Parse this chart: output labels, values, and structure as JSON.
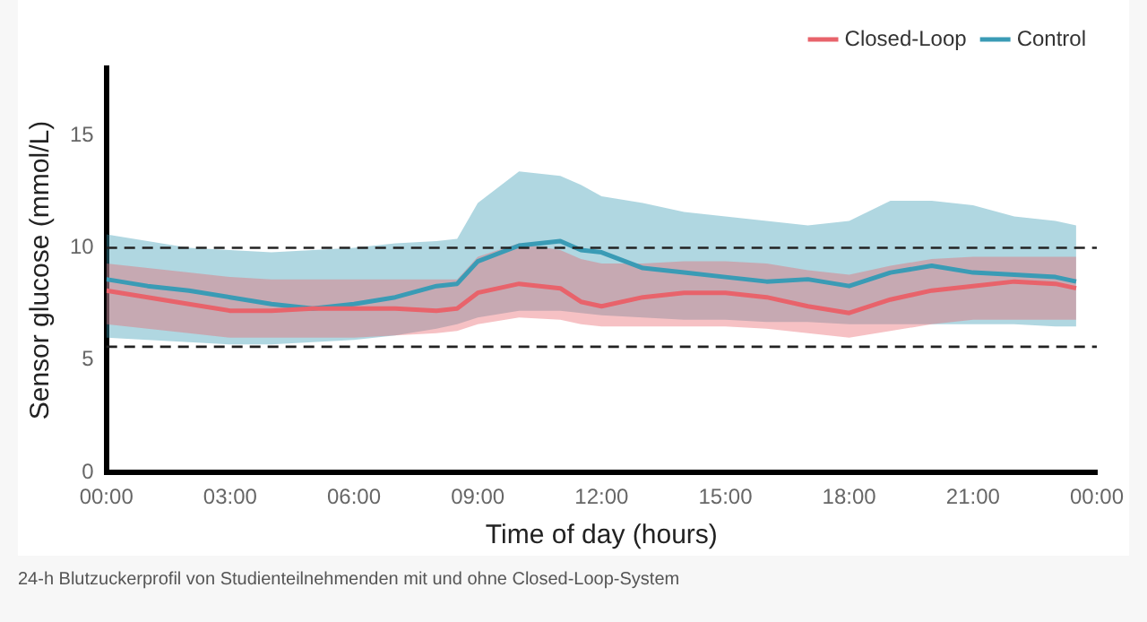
{
  "chart_data": {
    "type": "line",
    "xlabel": "Time of day (hours)",
    "ylabel": "Sensor glucose (mmol/L)",
    "x": [
      0,
      1,
      2,
      3,
      4,
      5,
      6,
      7,
      8,
      8.5,
      9,
      10,
      11,
      11.5,
      12,
      13,
      14,
      15,
      16,
      17,
      18,
      19,
      20,
      21,
      22,
      23,
      23.5
    ],
    "xlim": [
      0,
      24
    ],
    "xticks": [
      {
        "value": 0,
        "label": "00:00"
      },
      {
        "value": 3,
        "label": "03:00"
      },
      {
        "value": 6,
        "label": "06:00"
      },
      {
        "value": 9,
        "label": "09:00"
      },
      {
        "value": 12,
        "label": "12:00"
      },
      {
        "value": 15,
        "label": "15:00"
      },
      {
        "value": 18,
        "label": "18:00"
      },
      {
        "value": 21,
        "label": "21:00"
      },
      {
        "value": 24,
        "label": "00:00"
      }
    ],
    "ylim": [
      0,
      18
    ],
    "yticks": [
      0,
      5,
      10,
      15
    ],
    "grid": false,
    "legend": "top right",
    "series": [
      {
        "name": "Closed-Loop",
        "color": "#e8636b",
        "values": [
          8.1,
          7.8,
          7.5,
          7.2,
          7.2,
          7.3,
          7.3,
          7.3,
          7.2,
          7.3,
          8.0,
          8.4,
          8.2,
          7.6,
          7.4,
          7.8,
          8.0,
          8.0,
          7.8,
          7.4,
          7.1,
          7.7,
          8.1,
          8.3,
          8.5,
          8.4,
          8.2
        ],
        "lower": [
          6.6,
          6.4,
          6.2,
          6.0,
          6.0,
          6.0,
          6.0,
          6.1,
          6.2,
          6.3,
          6.6,
          6.9,
          6.8,
          6.6,
          6.5,
          6.5,
          6.5,
          6.5,
          6.4,
          6.2,
          6.0,
          6.3,
          6.6,
          6.8,
          6.8,
          6.8,
          6.8
        ],
        "upper": [
          9.3,
          9.1,
          8.9,
          8.7,
          8.6,
          8.6,
          8.6,
          8.6,
          8.6,
          8.6,
          9.6,
          10.2,
          9.9,
          9.5,
          9.3,
          9.3,
          9.4,
          9.4,
          9.3,
          9.0,
          8.8,
          9.2,
          9.5,
          9.6,
          9.6,
          9.6,
          9.6
        ]
      },
      {
        "name": "Control",
        "color": "#3a9bb5",
        "values": [
          8.6,
          8.3,
          8.1,
          7.8,
          7.5,
          7.3,
          7.5,
          7.8,
          8.3,
          8.4,
          9.4,
          10.1,
          10.3,
          9.9,
          9.8,
          9.1,
          8.9,
          8.7,
          8.5,
          8.6,
          8.3,
          8.9,
          9.2,
          8.9,
          8.8,
          8.7,
          8.5
        ],
        "lower": [
          6.0,
          5.9,
          5.8,
          5.7,
          5.7,
          5.8,
          5.9,
          6.1,
          6.4,
          6.6,
          6.9,
          7.2,
          7.2,
          7.1,
          7.0,
          6.9,
          6.8,
          6.8,
          6.7,
          6.7,
          6.6,
          6.6,
          6.6,
          6.6,
          6.6,
          6.5,
          6.5
        ],
        "upper": [
          10.6,
          10.3,
          10.0,
          9.9,
          9.8,
          9.9,
          10.0,
          10.2,
          10.3,
          10.4,
          12.0,
          13.4,
          13.2,
          12.8,
          12.3,
          12.0,
          11.6,
          11.4,
          11.2,
          11.0,
          11.2,
          12.1,
          12.1,
          11.9,
          11.4,
          11.2,
          11.0
        ]
      }
    ],
    "ref_lines": [
      {
        "axis": "y",
        "value": 10,
        "line_style": "dashed"
      },
      {
        "axis": "y",
        "value": 5.6,
        "line_style": "dashed"
      }
    ],
    "annotations": [
      "24-h Blutzuckerprofil von Studienteilnehmenden mit und ohne Closed-Loop-System"
    ]
  }
}
